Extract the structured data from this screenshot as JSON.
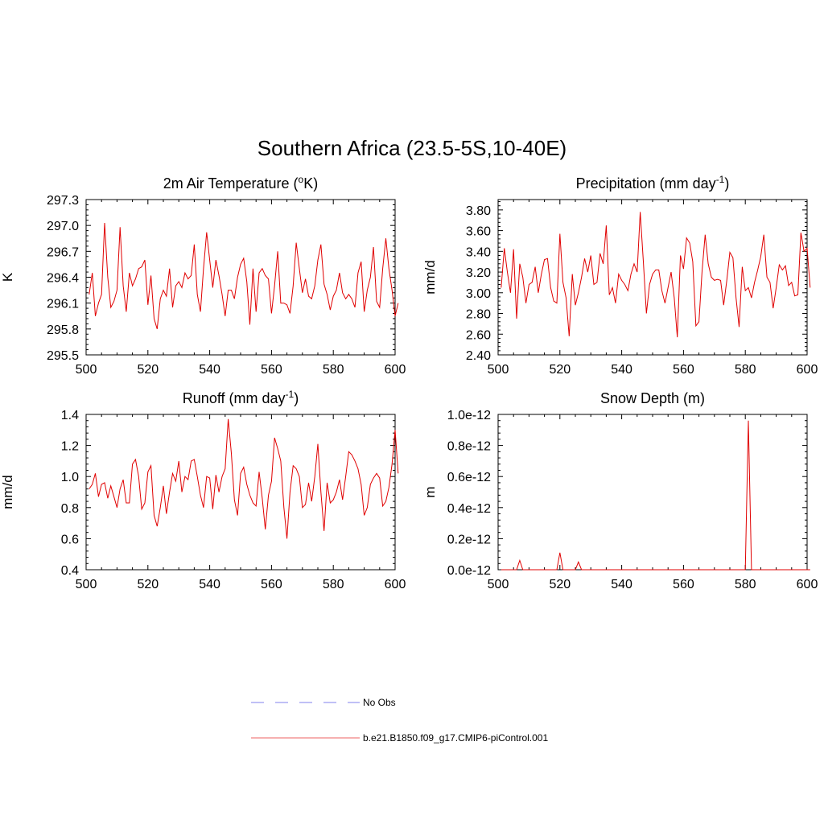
{
  "figure_title": "Southern Africa (23.5-5S,10-40E)",
  "colors": {
    "model_line": "#e00000",
    "obs_line": "#9a9af0",
    "axis": "#000000"
  },
  "legend": {
    "obs_label": "No Obs",
    "model_label": "b.e21.B1850.f09_g17.CMIP6-piControl.001"
  },
  "chart_data": [
    {
      "type": "line",
      "title": "2m Air Temperature (",
      "title_sup": "o",
      "title_after": "K)",
      "xlabel": "",
      "ylabel": "K",
      "xlim": [
        500,
        600
      ],
      "ylim": [
        295.5,
        297.3
      ],
      "xticks": [
        500,
        520,
        540,
        560,
        580,
        600
      ],
      "xtick_labels": [
        "500",
        "520",
        "540",
        "560",
        "580",
        "600"
      ],
      "yticks": [
        295.5,
        295.8,
        296.1,
        296.4,
        296.7,
        297.0,
        297.3
      ],
      "ytick_labels": [
        "295.5",
        "295.8",
        "296.1",
        "296.4",
        "296.7",
        "297.0",
        "297.3"
      ],
      "x_start": 501,
      "series": [
        {
          "name": "b.e21.B1850.f09_g17.CMIP6-piControl.001",
          "values": [
            296.2,
            296.45,
            295.95,
            296.1,
            296.2,
            297.03,
            296.4,
            296.05,
            296.12,
            296.25,
            296.98,
            296.3,
            296.0,
            296.45,
            296.3,
            296.38,
            296.5,
            296.52,
            296.6,
            296.08,
            296.42,
            295.92,
            295.8,
            296.15,
            296.25,
            296.18,
            296.5,
            296.05,
            296.3,
            296.35,
            296.28,
            296.45,
            296.38,
            296.42,
            296.78,
            296.2,
            296.0,
            296.5,
            296.92,
            296.6,
            296.28,
            296.6,
            296.42,
            296.2,
            295.95,
            296.25,
            296.25,
            296.15,
            296.4,
            296.55,
            296.62,
            296.35,
            295.85,
            296.5,
            296.0,
            296.45,
            296.5,
            296.42,
            296.38,
            295.98,
            296.3,
            296.7,
            296.1,
            296.1,
            296.08,
            295.98,
            296.3,
            296.8,
            296.5,
            296.22,
            296.38,
            296.18,
            296.15,
            296.3,
            296.6,
            296.78,
            296.32,
            296.2,
            296.02,
            296.18,
            296.25,
            296.45,
            296.22,
            296.15,
            296.2,
            296.15,
            296.05,
            296.45,
            296.58,
            296.0,
            296.25,
            296.4,
            296.75,
            296.12,
            296.05,
            296.5,
            296.85,
            296.5,
            296.25,
            295.95,
            296.1
          ]
        }
      ]
    },
    {
      "type": "line",
      "title": "Precipitation (mm day",
      "title_sup": "-1",
      "title_after": ")",
      "xlabel": "",
      "ylabel": "mm/d",
      "xlim": [
        500,
        600
      ],
      "ylim": [
        2.4,
        3.9
      ],
      "xticks": [
        500,
        520,
        540,
        560,
        580,
        600
      ],
      "xtick_labels": [
        "500",
        "520",
        "540",
        "560",
        "580",
        "600"
      ],
      "yticks": [
        2.4,
        2.6,
        2.8,
        3.0,
        3.2,
        3.4,
        3.6,
        3.8
      ],
      "ytick_labels": [
        "2.40",
        "2.60",
        "2.80",
        "3.00",
        "3.20",
        "3.40",
        "3.60",
        "3.80"
      ],
      "x_start": 501,
      "series": [
        {
          "name": "b.e21.B1850.f09_g17.CMIP6-piControl.001",
          "values": [
            3.05,
            3.43,
            3.2,
            3.0,
            3.42,
            2.75,
            3.28,
            3.15,
            2.9,
            3.08,
            3.1,
            3.25,
            3.0,
            3.18,
            3.32,
            3.33,
            3.05,
            2.92,
            2.9,
            3.57,
            3.1,
            2.95,
            2.58,
            3.18,
            2.88,
            3.0,
            3.15,
            3.33,
            3.2,
            3.36,
            3.08,
            3.1,
            3.38,
            3.28,
            3.65,
            2.98,
            3.05,
            2.9,
            3.18,
            3.12,
            3.08,
            3.02,
            3.18,
            3.28,
            3.2,
            3.78,
            3.3,
            2.8,
            3.08,
            3.18,
            3.22,
            3.22,
            3.02,
            2.9,
            3.05,
            3.2,
            2.95,
            2.57,
            3.36,
            3.23,
            3.53,
            3.48,
            3.3,
            2.68,
            2.72,
            3.2,
            3.56,
            3.28,
            3.15,
            3.12,
            3.13,
            3.12,
            2.88,
            3.12,
            3.39,
            3.34,
            2.95,
            2.67,
            3.25,
            3.02,
            3.05,
            2.95,
            3.1,
            3.22,
            3.35,
            3.56,
            3.15,
            3.1,
            2.85,
            3.05,
            3.27,
            3.22,
            3.26,
            3.07,
            3.1,
            2.97,
            2.98,
            3.58,
            3.4,
            3.43,
            3.05
          ]
        }
      ]
    },
    {
      "type": "line",
      "title": "Runoff (mm day",
      "title_sup": "-1",
      "title_after": ")",
      "xlabel": "",
      "ylabel": "mm/d",
      "xlim": [
        500,
        600
      ],
      "ylim": [
        0.4,
        1.4
      ],
      "xticks": [
        500,
        520,
        540,
        560,
        580,
        600
      ],
      "xtick_labels": [
        "500",
        "520",
        "540",
        "560",
        "580",
        "600"
      ],
      "yticks": [
        0.4,
        0.6,
        0.8,
        1.0,
        1.2,
        1.4
      ],
      "ytick_labels": [
        "0.4",
        "0.6",
        "0.8",
        "1.0",
        "1.2",
        "1.4"
      ],
      "x_start": 501,
      "series": [
        {
          "name": "b.e21.B1850.f09_g17.CMIP6-piControl.001",
          "values": [
            0.92,
            0.95,
            1.02,
            0.87,
            0.95,
            0.96,
            0.86,
            0.94,
            0.87,
            0.8,
            0.92,
            0.98,
            0.83,
            0.83,
            1.08,
            1.11,
            1.0,
            0.79,
            0.83,
            1.03,
            1.07,
            0.75,
            0.68,
            0.8,
            0.94,
            0.76,
            0.9,
            1.02,
            0.97,
            1.1,
            0.9,
            1.0,
            0.98,
            1.1,
            1.11,
            1.0,
            0.88,
            0.8,
            1.0,
            0.99,
            0.79,
            1.01,
            0.9,
            1.0,
            1.05,
            1.37,
            1.15,
            0.85,
            0.75,
            1.02,
            1.06,
            0.95,
            0.88,
            0.83,
            0.81,
            1.03,
            0.86,
            0.66,
            0.88,
            0.97,
            1.25,
            1.18,
            1.1,
            0.8,
            0.6,
            0.9,
            1.07,
            1.05,
            1.0,
            0.8,
            0.82,
            0.96,
            0.84,
            1.0,
            1.21,
            0.9,
            0.65,
            0.96,
            0.83,
            0.85,
            0.9,
            0.98,
            0.85,
            1.0,
            1.16,
            1.14,
            1.1,
            1.05,
            0.95,
            0.75,
            0.8,
            0.95,
            0.99,
            1.02,
            0.99,
            0.81,
            0.84,
            0.93,
            1.08,
            1.3,
            1.02
          ]
        }
      ]
    },
    {
      "type": "line",
      "title": "Snow Depth (m)",
      "title_sup": "",
      "title_after": "",
      "xlabel": "",
      "ylabel": "m",
      "xlim": [
        500,
        600
      ],
      "ylim": [
        0,
        1.0
      ],
      "value_scale": "1e-12",
      "xticks": [
        500,
        520,
        540,
        560,
        580,
        600
      ],
      "xtick_labels": [
        "500",
        "520",
        "540",
        "560",
        "580",
        "600"
      ],
      "yticks": [
        0.0,
        0.2,
        0.4,
        0.6,
        0.8,
        1.0
      ],
      "ytick_labels": [
        "0.0e-12",
        "0.2e-12",
        "0.4e-12",
        "0.6e-12",
        "0.8e-12",
        "1.0e-12"
      ],
      "x_start": 501,
      "series": [
        {
          "name": "b.e21.B1850.f09_g17.CMIP6-piControl.001",
          "values": [
            0,
            0,
            0,
            0,
            0,
            0,
            0.06,
            0,
            0,
            0,
            0,
            0,
            0,
            0,
            0,
            0,
            0,
            0,
            0,
            0.11,
            0,
            0,
            0,
            0,
            0,
            0.05,
            0,
            0,
            0,
            0,
            0,
            0,
            0,
            0,
            0,
            0,
            0,
            0,
            0,
            0,
            0,
            0,
            0,
            0,
            0,
            0,
            0,
            0,
            0,
            0,
            0,
            0,
            0,
            0,
            0,
            0,
            0,
            0,
            0,
            0,
            0,
            0,
            0,
            0,
            0,
            0,
            0,
            0,
            0,
            0,
            0,
            0,
            0,
            0,
            0,
            0,
            0,
            0,
            0,
            0,
            0.96,
            0,
            0,
            0,
            0,
            0,
            0,
            0,
            0,
            0,
            0,
            0,
            0,
            0,
            0,
            0,
            0,
            0,
            0,
            0,
            0
          ]
        }
      ]
    }
  ]
}
